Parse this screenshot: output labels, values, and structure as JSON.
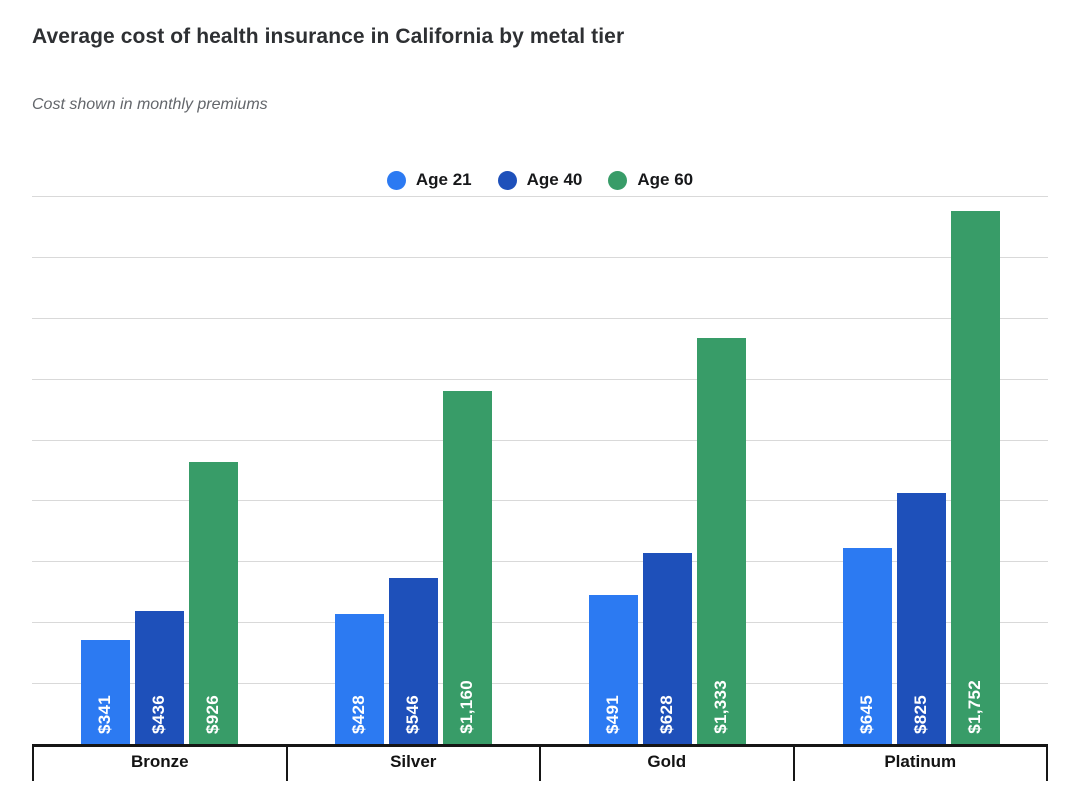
{
  "chart_data": {
    "type": "bar",
    "title": "Average cost of health insurance in California by metal tier",
    "subtitle": "Cost shown in monthly premiums",
    "xlabel": "",
    "ylabel": "",
    "categories": [
      "Bronze",
      "Silver",
      "Gold",
      "Platinum"
    ],
    "series": [
      {
        "name": "Age 21",
        "color": "#2c7af2",
        "values": [
          341,
          428,
          491,
          645
        ]
      },
      {
        "name": "Age 40",
        "color": "#1e50ba",
        "values": [
          436,
          546,
          628,
          825
        ]
      },
      {
        "name": "Age 60",
        "color": "#389c68",
        "values": [
          926,
          1160,
          1333,
          1752
        ]
      }
    ],
    "value_labels": [
      [
        "$341",
        "$428",
        "$491",
        "$645"
      ],
      [
        "$436",
        "$546",
        "$628",
        "$825"
      ],
      [
        "$926",
        "$1,160",
        "$1,333",
        "$1,752"
      ]
    ],
    "ylim": [
      0,
      1800
    ],
    "gridline_step": 200,
    "grid": true,
    "legend_position": "top-center",
    "value_label_color": "#ffffff",
    "gridline_color": "#d9d9d9",
    "axis_color": "#161616"
  }
}
